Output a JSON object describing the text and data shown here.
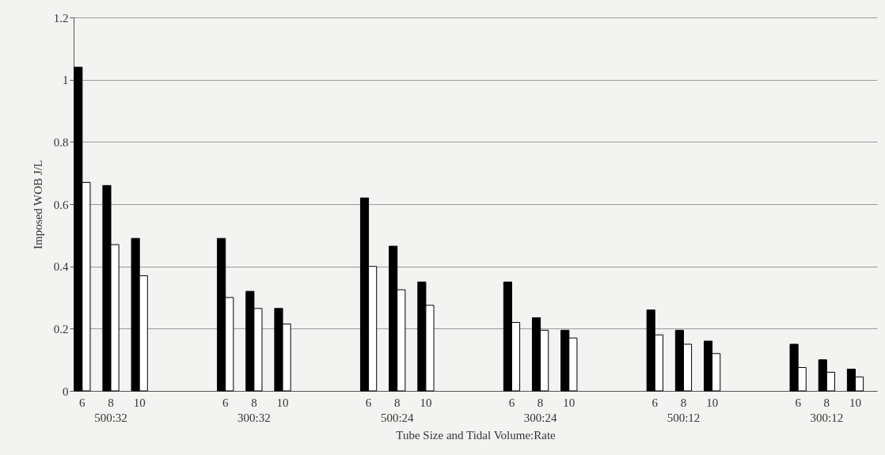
{
  "chart_data": {
    "type": "bar",
    "xlabel": "Tube Size and Tidal Volume:Rate",
    "ylabel": "Imposed WOB J/L",
    "categories": [
      "6",
      "8",
      "10",
      null,
      null,
      "6",
      "8",
      "10",
      null,
      null,
      "6",
      "8",
      "10",
      null,
      null,
      "6",
      "8",
      "10",
      null,
      null,
      "6",
      "8",
      "10",
      null,
      null,
      "6",
      "8",
      "10"
    ],
    "annotations": [
      "500:32",
      "300:32",
      "500:24",
      "300:24",
      "500:12",
      "300:12"
    ],
    "series": [
      {
        "color": "#000000",
        "values": [
          1.04,
          0.66,
          0.49,
          null,
          null,
          0.49,
          0.32,
          0.265,
          null,
          null,
          0.62,
          0.465,
          0.35,
          null,
          null,
          0.35,
          0.235,
          0.195,
          null,
          null,
          0.26,
          0.195,
          0.16,
          null,
          null,
          0.15,
          0.1,
          0.07
        ]
      },
      {
        "color": "#ffffff",
        "values": [
          0.67,
          0.47,
          0.37,
          null,
          null,
          0.3,
          0.265,
          0.215,
          null,
          null,
          0.4,
          0.325,
          0.275,
          null,
          null,
          0.22,
          0.195,
          0.17,
          null,
          null,
          0.18,
          0.15,
          0.12,
          null,
          null,
          0.075,
          0.06,
          0.045
        ]
      }
    ],
    "ylim": [
      0,
      1.2
    ],
    "yticks": [
      0,
      0.2,
      0.4,
      0.6,
      0.8,
      1,
      1.2
    ],
    "grid": "y",
    "legend": false
  }
}
